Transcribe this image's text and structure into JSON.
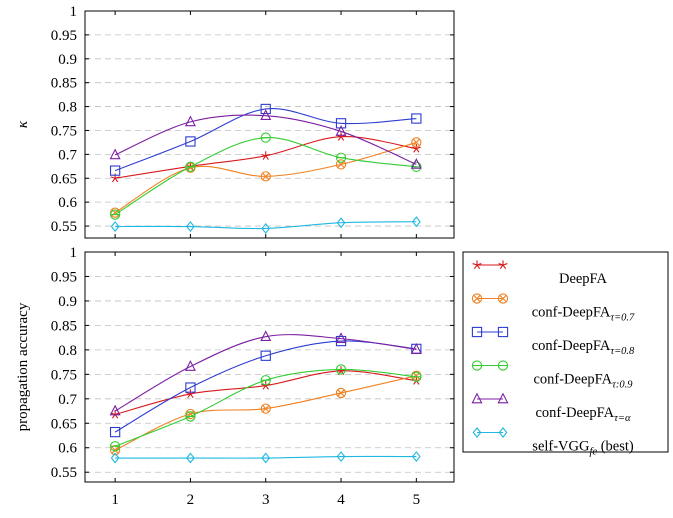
{
  "chart_data": [
    {
      "type": "line",
      "ylabel": "κ",
      "xlabel": "",
      "x": [
        1,
        2,
        3,
        4,
        5
      ],
      "xlim": [
        0.6,
        5.5
      ],
      "ylim": [
        0.525,
        1.0
      ],
      "yticks": [
        0.55,
        0.6,
        0.65,
        0.7,
        0.75,
        0.8,
        0.85,
        0.9,
        0.95,
        1
      ],
      "ytick_labels": [
        "0.55",
        "0.6",
        "0.65",
        "0.7",
        "0.75",
        "0.8",
        "0.85",
        "0.9",
        "0.95",
        "1"
      ],
      "grid": true,
      "series": [
        {
          "name": "DeepFA",
          "color": "#d7191c",
          "marker": "star",
          "values": [
            0.65,
            0.675,
            0.697,
            0.737,
            0.712
          ]
        },
        {
          "name": "conf-DeepFA τ=0.7",
          "color": "#f08020",
          "marker": "otimes",
          "values": [
            0.578,
            0.672,
            0.654,
            0.679,
            0.725
          ]
        },
        {
          "name": "conf-DeepFA τ=0.8",
          "color": "#2c3cd0",
          "marker": "square",
          "values": [
            0.666,
            0.727,
            0.795,
            0.765,
            0.775
          ]
        },
        {
          "name": "conf-DeepFA τ:0.9",
          "color": "#33cc33",
          "marker": "ominus",
          "values": [
            0.574,
            0.674,
            0.735,
            0.693,
            0.674
          ]
        },
        {
          "name": "conf-DeepFA τ=α",
          "color": "#7b1fa2",
          "marker": "triangle",
          "values": [
            0.699,
            0.768,
            0.781,
            0.748,
            0.679
          ]
        },
        {
          "name": "self-VGG fe (best)",
          "color": "#1fb8e0",
          "marker": "diamond",
          "values": [
            0.549,
            0.549,
            0.545,
            0.557,
            0.559
          ]
        }
      ]
    },
    {
      "type": "line",
      "ylabel": "propagation accuracy",
      "xlabel": "",
      "x": [
        1,
        2,
        3,
        4,
        5
      ],
      "xtick_labels": [
        "1",
        "2",
        "3",
        "4",
        "5"
      ],
      "xlim": [
        0.6,
        5.5
      ],
      "ylim": [
        0.53,
        1.0
      ],
      "yticks": [
        0.55,
        0.6,
        0.65,
        0.7,
        0.75,
        0.8,
        0.85,
        0.9,
        0.95,
        1
      ],
      "ytick_labels": [
        "0.55",
        "0.6",
        "0.65",
        "0.7",
        "0.75",
        "0.8",
        "0.85",
        "0.9",
        "0.95",
        "1"
      ],
      "grid": true,
      "legend_position": "right",
      "series": [
        {
          "name": "DeepFA",
          "color": "#d7191c",
          "marker": "star",
          "values": [
            0.668,
            0.71,
            0.727,
            0.757,
            0.737
          ]
        },
        {
          "name": "conf-DeepFA τ=0.7",
          "color": "#f08020",
          "marker": "otimes",
          "values": [
            0.595,
            0.669,
            0.68,
            0.712,
            0.747
          ]
        },
        {
          "name": "conf-DeepFA τ=0.8",
          "color": "#2c3cd0",
          "marker": "square",
          "values": [
            0.632,
            0.723,
            0.788,
            0.818,
            0.802
          ]
        },
        {
          "name": "conf-DeepFA τ:0.9",
          "color": "#33cc33",
          "marker": "ominus",
          "values": [
            0.603,
            0.664,
            0.738,
            0.76,
            0.745
          ]
        },
        {
          "name": "conf-DeepFA τ=α",
          "color": "#7b1fa2",
          "marker": "triangle",
          "values": [
            0.675,
            0.766,
            0.827,
            0.823,
            0.801
          ]
        },
        {
          "name": "self-VGG fe (best)",
          "color": "#1fb8e0",
          "marker": "diamond",
          "values": [
            0.579,
            0.579,
            0.579,
            0.582,
            0.582
          ]
        }
      ]
    }
  ],
  "legend": [
    {
      "base": "DeepFA",
      "sub": "",
      "sub_italic": false,
      "suffix": "",
      "color": "#d7191c",
      "marker": "star"
    },
    {
      "base": "conf-DeepFA",
      "sub": "τ=0.7",
      "sub_italic": true,
      "suffix": "",
      "color": "#f08020",
      "marker": "otimes"
    },
    {
      "base": "conf-DeepFA",
      "sub": "τ=0.8",
      "sub_italic": true,
      "suffix": "",
      "color": "#2c3cd0",
      "marker": "square"
    },
    {
      "base": "conf-DeepFA",
      "sub": "τ:0.9",
      "sub_italic": true,
      "suffix": "",
      "color": "#33cc33",
      "marker": "ominus"
    },
    {
      "base": "conf-DeepFA",
      "sub": "τ=α",
      "sub_italic": true,
      "suffix": "",
      "color": "#7b1fa2",
      "marker": "triangle"
    },
    {
      "base": "self-VGG",
      "sub": "fe",
      "sub_italic": true,
      "suffix": " (best)",
      "color": "#1fb8e0",
      "marker": "diamond"
    }
  ]
}
